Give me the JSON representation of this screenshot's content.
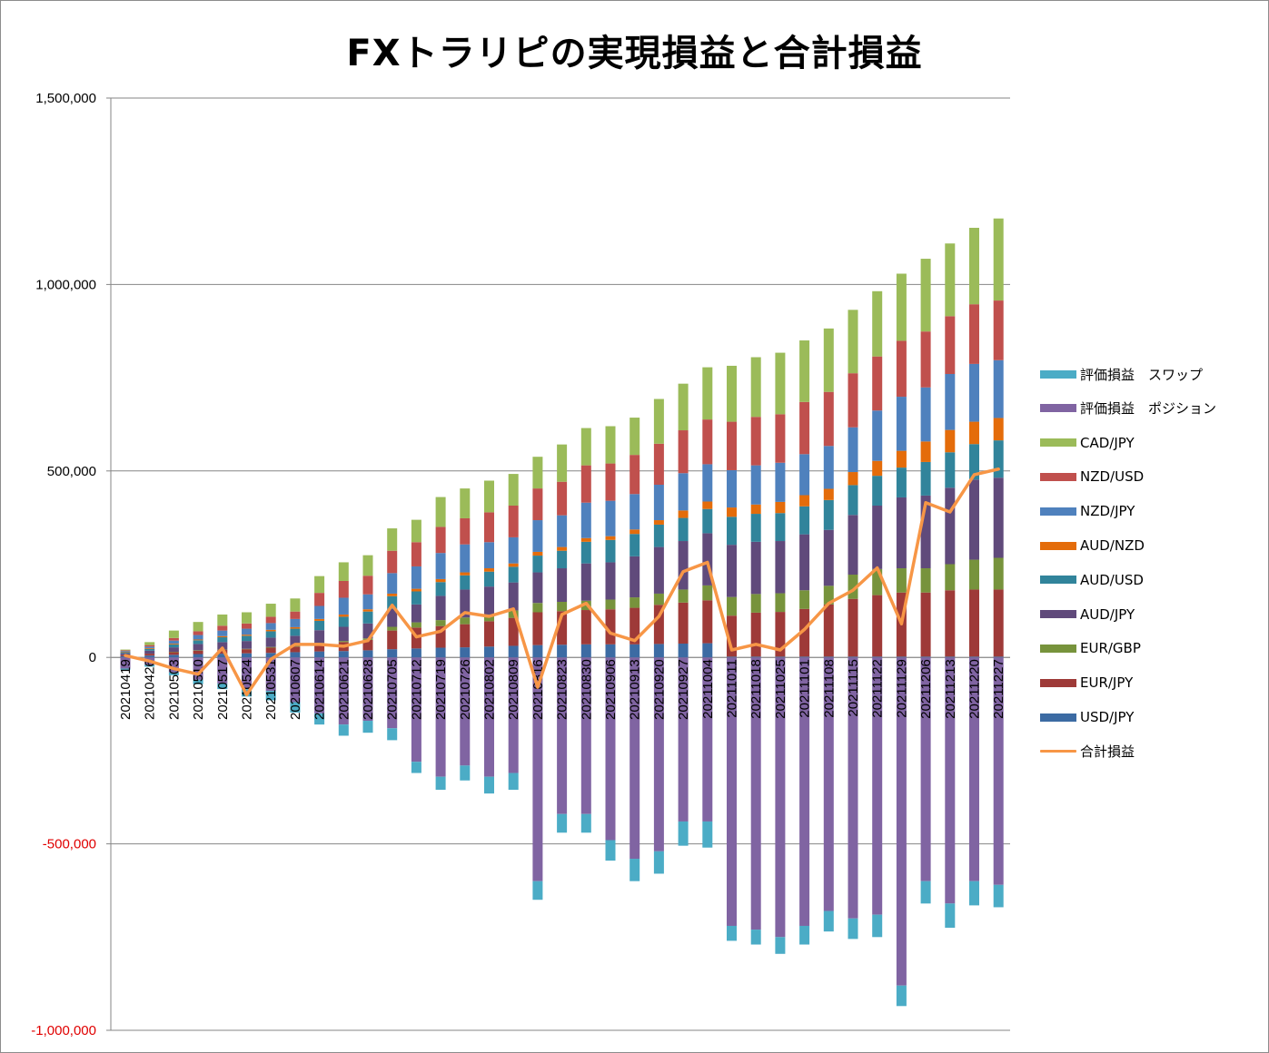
{
  "title": "FXトラリピの実現損益と合計損益",
  "chart_data": {
    "type": "bar",
    "stacked": true,
    "title": "FXトラリピの実現損益と合計損益",
    "xlabel": "",
    "ylabel": "",
    "ylim": [
      -1000000,
      1500000
    ],
    "yticks": [
      1500000,
      1000000,
      500000,
      0,
      -500000,
      -1000000
    ],
    "ytick_labels": [
      "1,500,000",
      "1,000,000",
      "500,000",
      "0",
      "-500,000",
      "-1,000,000"
    ],
    "negative_tick_color": "#e00000",
    "grid": true,
    "legend_position": "right",
    "categories": [
      "20210419",
      "20210426",
      "20210503",
      "20210510",
      "20210517",
      "20210524",
      "20210531",
      "20210607",
      "20210614",
      "20210621",
      "20210628",
      "20210705",
      "20210712",
      "20210719",
      "20210726",
      "20210802",
      "20210809",
      "20210816",
      "20210823",
      "20210830",
      "20210906",
      "20210913",
      "20210920",
      "20210927",
      "20211004",
      "20211011",
      "20211018",
      "20211025",
      "20211101",
      "20211108",
      "20211115",
      "20211122",
      "20211129",
      "20211206",
      "20211213",
      "20211220",
      "20211227"
    ],
    "series": [
      {
        "name": "USD/JPY",
        "color": "#3c6ba3",
        "kind": "bar",
        "values": [
          3000,
          5000,
          7000,
          9000,
          10000,
          11000,
          12000,
          14000,
          16000,
          17000,
          19000,
          22000,
          24000,
          26000,
          27000,
          29000,
          31000,
          33000,
          34000,
          35000,
          35000,
          35000,
          36000,
          37000,
          38000,
          2000,
          2000,
          2000,
          2000,
          2000,
          2000,
          2000,
          2000,
          2000,
          2000,
          2000,
          2000
        ]
      },
      {
        "name": "EUR/JPY",
        "color": "#9e3a38",
        "kind": "bar",
        "values": [
          3000,
          5000,
          7000,
          9000,
          10000,
          11000,
          14000,
          15000,
          20000,
          24000,
          28000,
          50000,
          56000,
          58000,
          62000,
          68000,
          75000,
          88000,
          90000,
          92000,
          94000,
          98000,
          105000,
          110000,
          115000,
          110000,
          118000,
          120000,
          128000,
          140000,
          155000,
          165000,
          172000,
          172000,
          178000,
          180000,
          180000
        ]
      },
      {
        "name": "EUR/GBP",
        "color": "#77933c",
        "kind": "bar",
        "values": [
          0,
          0,
          1000,
          1000,
          1000,
          1000,
          2000,
          2000,
          3000,
          3000,
          4000,
          10000,
          14000,
          16000,
          18000,
          18000,
          20000,
          25000,
          25000,
          25000,
          26000,
          28000,
          30000,
          35000,
          40000,
          50000,
          50000,
          50000,
          50000,
          50000,
          65000,
          70000,
          65000,
          65000,
          70000,
          80000,
          85000
        ]
      },
      {
        "name": "AUD/JPY",
        "color": "#604a7b",
        "kind": "bar",
        "values": [
          5000,
          8000,
          12000,
          17000,
          20000,
          21000,
          25000,
          27000,
          34000,
          38000,
          40000,
          48000,
          48000,
          65000,
          75000,
          75000,
          75000,
          82000,
          90000,
          100000,
          100000,
          110000,
          125000,
          130000,
          140000,
          140000,
          140000,
          140000,
          150000,
          150000,
          160000,
          170000,
          190000,
          195000,
          205000,
          215000,
          215000
        ]
      },
      {
        "name": "AUD/USD",
        "color": "#31849b",
        "kind": "bar",
        "values": [
          3000,
          5000,
          8000,
          10000,
          13000,
          14000,
          17000,
          19000,
          25000,
          27000,
          32000,
          34000,
          35000,
          37000,
          38000,
          40000,
          42000,
          45000,
          47000,
          58000,
          60000,
          60000,
          60000,
          62000,
          65000,
          75000,
          75000,
          75000,
          75000,
          80000,
          80000,
          80000,
          80000,
          90000,
          95000,
          95000,
          100000
        ]
      },
      {
        "name": "AUD/NZD",
        "color": "#e46c0a",
        "kind": "bar",
        "values": [
          1000,
          2000,
          2000,
          2000,
          3000,
          3000,
          4000,
          4000,
          5000,
          6000,
          6000,
          7000,
          7000,
          8000,
          8000,
          9000,
          9000,
          10000,
          10000,
          10000,
          10000,
          12000,
          12000,
          20000,
          20000,
          25000,
          25000,
          30000,
          30000,
          30000,
          35000,
          40000,
          45000,
          55000,
          60000,
          60000,
          60000
        ]
      },
      {
        "name": "NZD/JPY",
        "color": "#4f81bd",
        "kind": "bar",
        "values": [
          2000,
          4000,
          8000,
          12000,
          15000,
          16000,
          18000,
          22000,
          35000,
          45000,
          40000,
          55000,
          60000,
          70000,
          75000,
          70000,
          70000,
          85000,
          85000,
          95000,
          95000,
          95000,
          95000,
          100000,
          100000,
          100000,
          105000,
          105000,
          110000,
          115000,
          120000,
          135000,
          145000,
          145000,
          150000,
          155000,
          155000
        ]
      },
      {
        "name": "NZD/USD",
        "color": "#c0504d",
        "kind": "bar",
        "values": [
          2000,
          4000,
          7000,
          10000,
          13000,
          14000,
          17000,
          20000,
          35000,
          45000,
          50000,
          60000,
          65000,
          70000,
          70000,
          80000,
          85000,
          85000,
          90000,
          100000,
          100000,
          105000,
          110000,
          115000,
          120000,
          130000,
          130000,
          130000,
          140000,
          145000,
          145000,
          145000,
          150000,
          150000,
          155000,
          160000,
          160000
        ]
      },
      {
        "name": "CAD/JPY",
        "color": "#9bbb59",
        "kind": "bar",
        "values": [
          2000,
          8000,
          20000,
          25000,
          30000,
          30000,
          35000,
          35000,
          45000,
          50000,
          55000,
          60000,
          60000,
          80000,
          80000,
          85000,
          85000,
          85000,
          100000,
          100000,
          100000,
          100000,
          120000,
          125000,
          140000,
          150000,
          160000,
          165000,
          165000,
          170000,
          170000,
          175000,
          180000,
          195000,
          195000,
          205000,
          220000
        ]
      },
      {
        "name": "評価損益　ポジション",
        "color": "#8064a2",
        "kind": "neg",
        "values": [
          -30000,
          -20000,
          -40000,
          -60000,
          -70000,
          -85000,
          -90000,
          -120000,
          -150000,
          -180000,
          -170000,
          -190000,
          -280000,
          -320000,
          -290000,
          -320000,
          -310000,
          -600000,
          -420000,
          -420000,
          -490000,
          -540000,
          -520000,
          -440000,
          -440000,
          -720000,
          -730000,
          -750000,
          -720000,
          -680000,
          -700000,
          -690000,
          -880000,
          -600000,
          -660000,
          -600000,
          -610000
        ]
      },
      {
        "name": "評価損益　スワップ",
        "color": "#4bacc6",
        "kind": "neg",
        "values": [
          -3000,
          -5000,
          -8000,
          -12000,
          -15000,
          -20000,
          -25000,
          -28000,
          -30000,
          -30000,
          -32000,
          -32000,
          -30000,
          -35000,
          -40000,
          -45000,
          -45000,
          -50000,
          -50000,
          -50000,
          -55000,
          -60000,
          -60000,
          -65000,
          -70000,
          -40000,
          -40000,
          -45000,
          -50000,
          -55000,
          -55000,
          -60000,
          -55000,
          -60000,
          -65000,
          -65000,
          -60000
        ]
      },
      {
        "name": "合計損益",
        "color": "#f79646",
        "kind": "line",
        "values": [
          5000,
          -10000,
          -30000,
          -45000,
          25000,
          -100000,
          -5000,
          35000,
          35000,
          30000,
          45000,
          140000,
          55000,
          70000,
          120000,
          110000,
          130000,
          -80000,
          115000,
          145000,
          65000,
          45000,
          110000,
          230000,
          255000,
          20000,
          35000,
          20000,
          75000,
          145000,
          180000,
          240000,
          90000,
          415000,
          390000,
          490000,
          505000
        ]
      }
    ]
  },
  "legend": {
    "items": [
      {
        "label": "評価損益　スワップ",
        "color": "#4bacc6",
        "kind": "bar"
      },
      {
        "label": "評価損益　ポジション",
        "color": "#8064a2",
        "kind": "bar"
      },
      {
        "label": "CAD/JPY",
        "color": "#9bbb59",
        "kind": "bar"
      },
      {
        "label": "NZD/USD",
        "color": "#c0504d",
        "kind": "bar"
      },
      {
        "label": "NZD/JPY",
        "color": "#4f81bd",
        "kind": "bar"
      },
      {
        "label": "AUD/NZD",
        "color": "#e46c0a",
        "kind": "bar"
      },
      {
        "label": "AUD/USD",
        "color": "#31849b",
        "kind": "bar"
      },
      {
        "label": "AUD/JPY",
        "color": "#604a7b",
        "kind": "bar"
      },
      {
        "label": "EUR/GBP",
        "color": "#77933c",
        "kind": "bar"
      },
      {
        "label": "EUR/JPY",
        "color": "#9e3a38",
        "kind": "bar"
      },
      {
        "label": "USD/JPY",
        "color": "#3c6ba3",
        "kind": "bar"
      },
      {
        "label": "合計損益",
        "color": "#f79646",
        "kind": "line"
      }
    ]
  }
}
